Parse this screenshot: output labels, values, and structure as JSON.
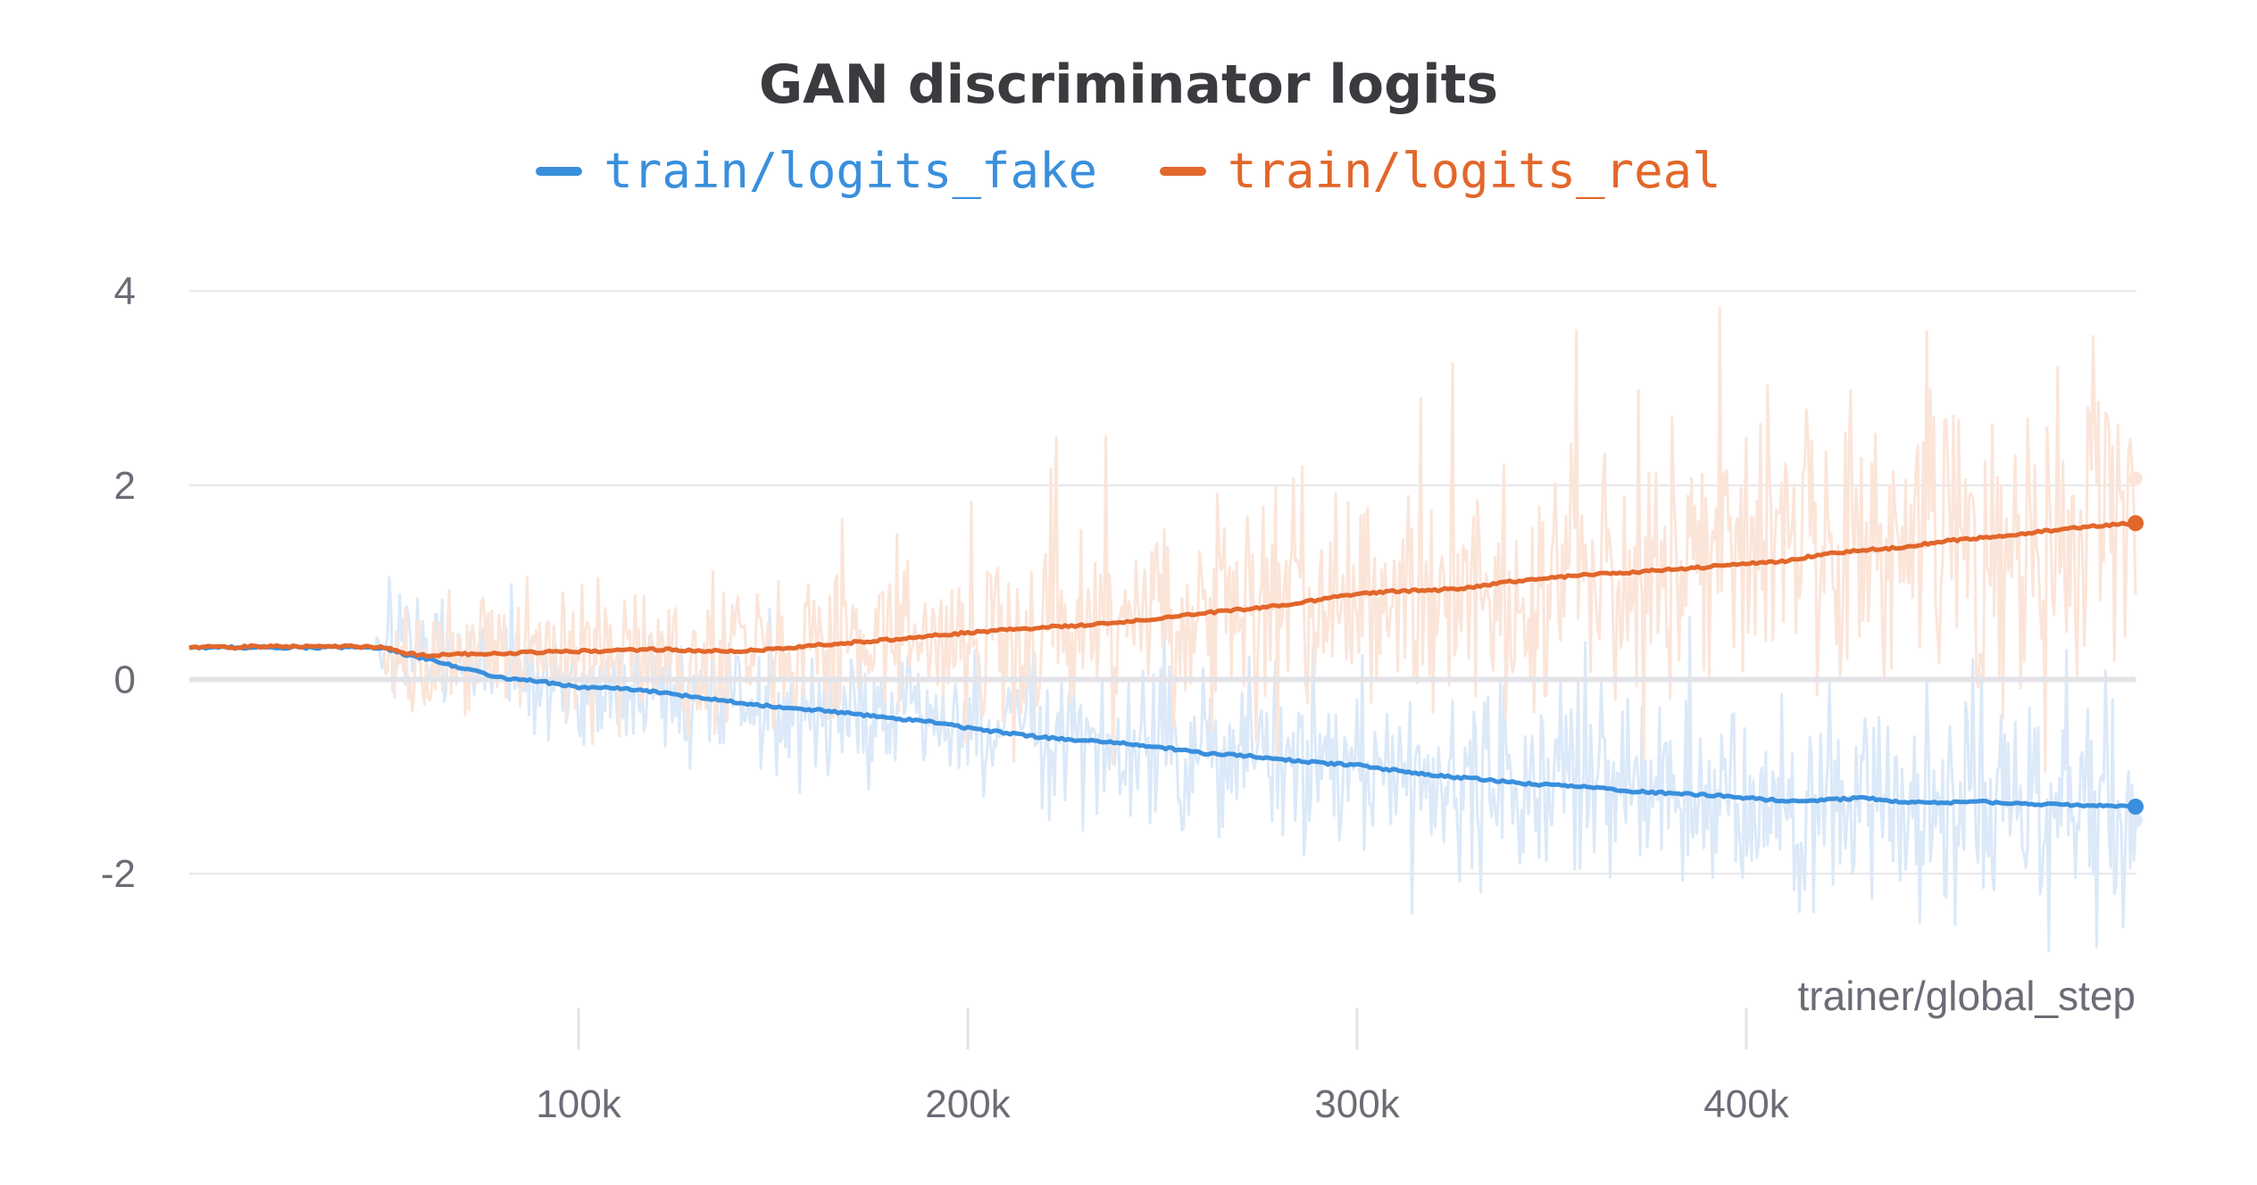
{
  "chart_data": {
    "type": "line",
    "title": "GAN discriminator logits",
    "xlabel": "trainer/global_step",
    "ylabel": "",
    "xlim": [
      0,
      500000
    ],
    "ylim": [
      -3.8,
      4.7
    ],
    "x_ticks": [
      {
        "value": 100000,
        "label": "100k"
      },
      {
        "value": 200000,
        "label": "200k"
      },
      {
        "value": 300000,
        "label": "300k"
      },
      {
        "value": 400000,
        "label": "400k"
      }
    ],
    "y_ticks": [
      {
        "value": 4,
        "label": "4"
      },
      {
        "value": 2,
        "label": "2"
      },
      {
        "value": 0,
        "label": "0"
      },
      {
        "value": -2,
        "label": "-2"
      }
    ],
    "grid": true,
    "legend_position": "top-center",
    "series": [
      {
        "name": "train/logits_fake",
        "color": "#3a8fdc",
        "raw_color": "#dbe9f8",
        "x": [
          0,
          20000,
          40000,
          50000,
          55000,
          60000,
          70000,
          80000,
          90000,
          100000,
          110000,
          120000,
          130000,
          140000,
          150000,
          160000,
          170000,
          180000,
          190000,
          200000,
          210000,
          220000,
          230000,
          240000,
          250000,
          260000,
          270000,
          280000,
          290000,
          300000,
          310000,
          320000,
          330000,
          340000,
          350000,
          360000,
          370000,
          380000,
          390000,
          400000,
          410000,
          420000,
          430000,
          440000,
          450000,
          460000,
          470000,
          480000,
          490000,
          500000
        ],
        "values": [
          0.33,
          0.33,
          0.33,
          0.33,
          0.26,
          0.22,
          0.12,
          0.02,
          -0.02,
          -0.08,
          -0.09,
          -0.13,
          -0.18,
          -0.23,
          -0.28,
          -0.31,
          -0.35,
          -0.4,
          -0.43,
          -0.5,
          -0.55,
          -0.6,
          -0.63,
          -0.66,
          -0.7,
          -0.76,
          -0.78,
          -0.82,
          -0.86,
          -0.88,
          -0.94,
          -0.99,
          -1.02,
          -1.06,
          -1.09,
          -1.11,
          -1.15,
          -1.17,
          -1.19,
          -1.22,
          -1.25,
          -1.24,
          -1.22,
          -1.26,
          -1.27,
          -1.26,
          -1.28,
          -1.29,
          -1.3,
          -1.31
        ],
        "last_raw": -1.45,
        "noise_start": 48000,
        "noise_amplitude_start": 0.7,
        "noise_amplitude_end": 1.6
      },
      {
        "name": "train/logits_real",
        "color": "#e2672b",
        "raw_color": "#fbe5d9",
        "x": [
          0,
          20000,
          40000,
          50000,
          55000,
          60000,
          70000,
          80000,
          90000,
          100000,
          110000,
          120000,
          130000,
          140000,
          150000,
          160000,
          170000,
          180000,
          190000,
          200000,
          210000,
          220000,
          230000,
          240000,
          250000,
          260000,
          270000,
          280000,
          290000,
          300000,
          310000,
          320000,
          330000,
          340000,
          350000,
          360000,
          370000,
          380000,
          390000,
          400000,
          410000,
          420000,
          430000,
          440000,
          450000,
          460000,
          470000,
          480000,
          490000,
          500000
        ],
        "values": [
          0.33,
          0.34,
          0.34,
          0.33,
          0.27,
          0.25,
          0.26,
          0.27,
          0.28,
          0.29,
          0.3,
          0.31,
          0.3,
          0.29,
          0.31,
          0.35,
          0.38,
          0.41,
          0.45,
          0.48,
          0.51,
          0.54,
          0.56,
          0.59,
          0.63,
          0.68,
          0.72,
          0.76,
          0.82,
          0.88,
          0.91,
          0.92,
          0.95,
          1.01,
          1.05,
          1.08,
          1.1,
          1.13,
          1.16,
          1.19,
          1.22,
          1.29,
          1.33,
          1.36,
          1.42,
          1.46,
          1.5,
          1.54,
          1.58,
          1.61
        ],
        "last_raw": 2.07,
        "noise_start": 50000,
        "noise_amplitude_start": 0.8,
        "noise_amplitude_end": 2.3
      }
    ]
  }
}
